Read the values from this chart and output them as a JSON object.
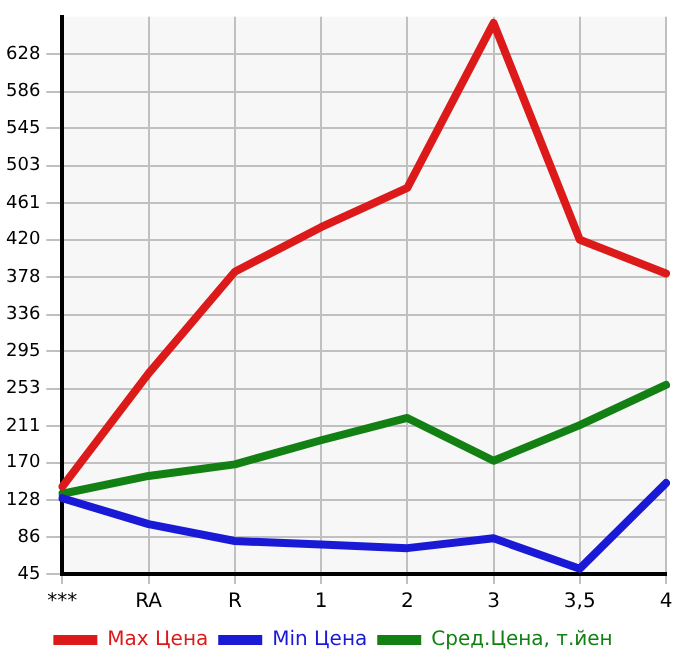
{
  "chart_data": {
    "type": "line",
    "categories": [
      "***",
      "RA",
      "R",
      "1",
      "2",
      "3",
      "3,5",
      "4"
    ],
    "series": [
      {
        "name": "Max Цена",
        "color": "#dd1a1a",
        "values": [
          143,
          270,
          384,
          434,
          478,
          663,
          420,
          382
        ]
      },
      {
        "name": "Min Цена",
        "color": "#1a1ad6",
        "values": [
          130,
          101,
          82,
          78,
          74,
          85,
          51,
          147
        ]
      },
      {
        "name": "Сред.Цена, т.йен",
        "color": "#138013",
        "values": [
          135,
          155,
          168,
          195,
          220,
          172,
          212,
          257
        ]
      }
    ],
    "ylim": [
      45,
      670
    ],
    "yticks": [
      45,
      86,
      128,
      170,
      211,
      253,
      295,
      336,
      378,
      420,
      461,
      503,
      545,
      586,
      628
    ],
    "grid": true,
    "legend": "bottom",
    "marker": "none",
    "line_style": "solid"
  }
}
